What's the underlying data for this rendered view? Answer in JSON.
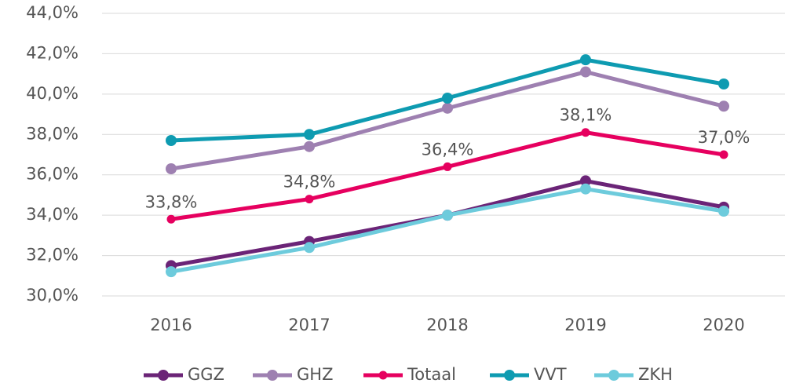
{
  "chart_data": {
    "type": "line",
    "categories": [
      "2016",
      "2017",
      "2018",
      "2019",
      "2020"
    ],
    "series": [
      {
        "name": "GGZ",
        "color": "#6b2477",
        "values": [
          31.5,
          32.7,
          34.0,
          35.7,
          34.4
        ]
      },
      {
        "name": "GHZ",
        "color": "#9e80b1",
        "values": [
          36.3,
          37.4,
          39.3,
          41.1,
          39.4
        ]
      },
      {
        "name": "Totaal",
        "color": "#e6005f",
        "values": [
          33.8,
          34.8,
          36.4,
          38.1,
          37.0
        ],
        "value_labels": [
          "33,8%",
          "34,8%",
          "36,4%",
          "38,1%",
          "37,0%"
        ]
      },
      {
        "name": "VVT",
        "color": "#0e9bb1",
        "values": [
          37.7,
          38.0,
          39.8,
          41.7,
          40.5
        ]
      },
      {
        "name": "ZKH",
        "color": "#6dcbdc",
        "values": [
          31.2,
          32.4,
          34.0,
          35.3,
          34.2
        ]
      }
    ],
    "ylim": [
      30,
      44
    ],
    "yticks": [
      {
        "value": 30,
        "label": "30,0%"
      },
      {
        "value": 32,
        "label": "32,0%"
      },
      {
        "value": 34,
        "label": "34,0%"
      },
      {
        "value": 36,
        "label": "36,0%"
      },
      {
        "value": 38,
        "label": "38,0%"
      },
      {
        "value": 40,
        "label": "40,0%"
      },
      {
        "value": 42,
        "label": "42,0%"
      },
      {
        "value": 44,
        "label": "44,0%"
      }
    ],
    "grid": true,
    "legend": "bottom"
  }
}
